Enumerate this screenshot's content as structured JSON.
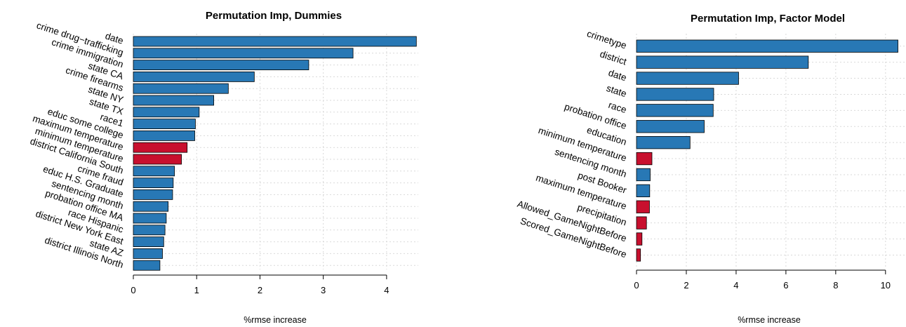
{
  "colors": {
    "normal": "#2878b5",
    "highlight": "#c8102e"
  },
  "chart_data": [
    {
      "type": "bar",
      "orientation": "horizontal",
      "title": "Permutation Imp, Dummies",
      "xlabel": "%rmse increase",
      "xlim": [
        0,
        4.5
      ],
      "xticks": [
        0,
        1,
        2,
        3,
        4
      ],
      "grid": true,
      "categories": [
        "date",
        "crime drug−trafficking",
        "crime immigration",
        "state CA",
        "crime firearms",
        "state NY",
        "state TX",
        "race1",
        "educ some college",
        "maximum temperature",
        "minimum temperature",
        "district California South",
        "crime fraud",
        "educ H.S. Graduate",
        "sentencing month",
        "probation office MA",
        "race Hispanic",
        "district New York East",
        "state AZ",
        "district Illinois North"
      ],
      "values": [
        4.47,
        3.47,
        2.77,
        1.91,
        1.5,
        1.27,
        1.04,
        0.98,
        0.97,
        0.85,
        0.76,
        0.65,
        0.63,
        0.62,
        0.55,
        0.52,
        0.5,
        0.48,
        0.46,
        0.42
      ],
      "highlight": [
        false,
        false,
        false,
        false,
        false,
        false,
        false,
        false,
        false,
        true,
        true,
        false,
        false,
        false,
        false,
        false,
        false,
        false,
        false,
        false
      ]
    },
    {
      "type": "bar",
      "orientation": "horizontal",
      "title": "Permutation Imp, Factor Model",
      "xlabel": "%rmse increase",
      "xlim": [
        0,
        10.4
      ],
      "xticks": [
        0,
        2,
        4,
        6,
        8,
        10
      ],
      "grid": true,
      "categories": [
        "crimetype",
        "district",
        "date",
        "state",
        "race",
        "probation office",
        "education",
        "minimum temperature",
        "sentencing month",
        "post Booker",
        "maximum temperature",
        "precipitation",
        "Allowed_GameNightBefore",
        "Scored_GameNightBefore"
      ],
      "values": [
        10.5,
        6.9,
        4.1,
        3.1,
        3.08,
        2.72,
        2.15,
        0.62,
        0.55,
        0.53,
        0.52,
        0.4,
        0.22,
        0.16
      ],
      "highlight": [
        false,
        false,
        false,
        false,
        false,
        false,
        false,
        true,
        false,
        false,
        true,
        true,
        true,
        true
      ]
    }
  ]
}
